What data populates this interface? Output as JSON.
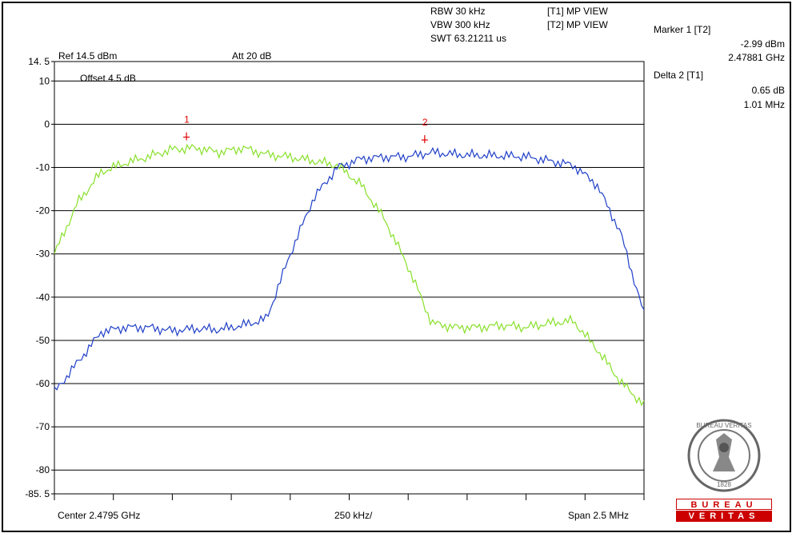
{
  "header": {
    "rbw": "RBW 30 kHz",
    "vbw": "VBW 300 kHz",
    "swt": "SWT 63.21211 us",
    "t1": "[T1] MP VIEW",
    "t2": "[T2] MP VIEW",
    "ref": "Ref 14.5 dBm",
    "att": "Att  20 dB",
    "offset": "Offset 4.5 dB"
  },
  "markers_panel": {
    "m1_label": "Marker 1 [T2]",
    "m1_value": "-2.99 dBm",
    "m1_freq": "2.47881 GHz",
    "d2_label": "Delta 2 [T1]",
    "d2_value": "0.65 dB",
    "d2_freq": "1.01 MHz"
  },
  "footer": {
    "center": "Center 2.4795 GHz",
    "div": "250 kHz/",
    "span": "Span 2.5 MHz"
  },
  "logo": {
    "top_text": "BUREAU",
    "bottom_text": "VERITAS",
    "ring_text": "BUREAU VERITAS",
    "year": "1828"
  },
  "chart_data": {
    "type": "line",
    "title": "",
    "xlabel": "",
    "ylabel": "",
    "x_unit": "MHz",
    "y_unit": "dBm",
    "xlim": [
      2.47825,
      2.48075
    ],
    "ylim": [
      -85.5,
      14.5
    ],
    "y_ticks": [
      14.5,
      10,
      0,
      -10,
      -20,
      -30,
      -40,
      -50,
      -60,
      -70,
      -80,
      -85.5
    ],
    "y_tick_labels": [
      "14. 5",
      "10",
      "0",
      "-10",
      "-20",
      "-30",
      "-40",
      "-50",
      "-60",
      "-70",
      "-80",
      "-85. 5"
    ],
    "grid": true,
    "colors": {
      "t1": "#88e02a",
      "t2": "#1f3fc8",
      "marker": "#e00000",
      "grid": "#000000"
    },
    "series": [
      {
        "name": "",
        "color": "#88e02a",
        "x": [
          2.47825,
          2.47835,
          2.47845,
          2.47855,
          2.47865,
          2.47875,
          2.47885,
          2.47895,
          2.47905,
          2.47915,
          2.47925,
          2.47935,
          2.47945,
          2.47955,
          2.47965,
          2.47975,
          2.47985,
          2.47995,
          2.48005,
          2.48015,
          2.48025,
          2.48035,
          2.48045,
          2.48055,
          2.48065,
          2.48075
        ],
        "y": [
          -30,
          -18,
          -11,
          -9,
          -7.5,
          -5.8,
          -5.5,
          -6.5,
          -5.5,
          -7,
          -7.6,
          -8.5,
          -9.5,
          -14,
          -22,
          -33,
          -46,
          -47,
          -47,
          -46.5,
          -47,
          -46,
          -45.5,
          -52,
          -59.5,
          -65
        ]
      },
      {
        "name": "",
        "color": "#1f3fc8",
        "x": [
          2.47825,
          2.47835,
          2.47845,
          2.47855,
          2.47865,
          2.47875,
          2.47885,
          2.47895,
          2.47905,
          2.47915,
          2.47925,
          2.47935,
          2.47945,
          2.47955,
          2.47965,
          2.47975,
          2.47985,
          2.47995,
          2.48005,
          2.48015,
          2.48025,
          2.48035,
          2.48045,
          2.48055,
          2.48065,
          2.48075
        ],
        "y": [
          -62,
          -55,
          -48,
          -47,
          -47,
          -47.8,
          -47.3,
          -47.5,
          -46.5,
          -45,
          -30,
          -17,
          -10,
          -8,
          -7.6,
          -7.5,
          -6.5,
          -7,
          -7.2,
          -7.3,
          -7.5,
          -8.5,
          -9.5,
          -14,
          -25,
          -44
        ]
      }
    ],
    "markers": [
      {
        "label": "1",
        "x": 2.47881,
        "y": -2.99
      },
      {
        "label": "2",
        "x": 2.47982,
        "y": -3.64
      }
    ]
  }
}
